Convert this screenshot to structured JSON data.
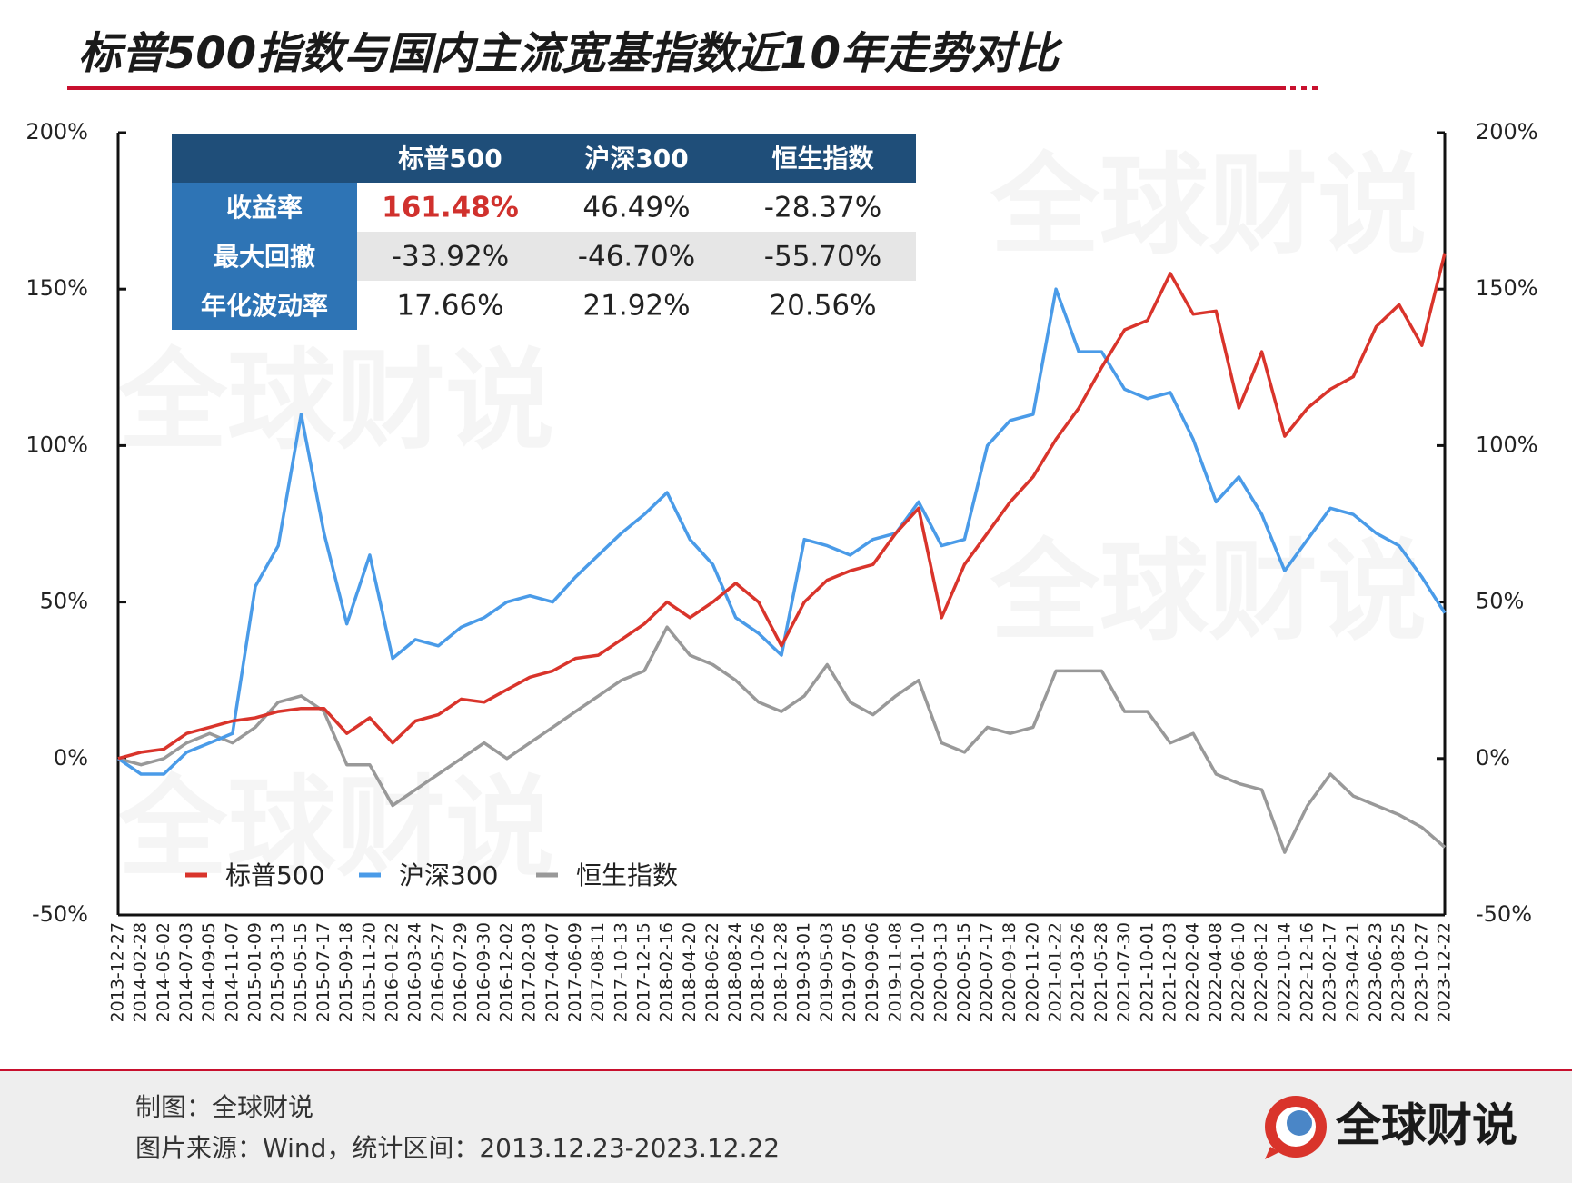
{
  "chart_data": {
    "type": "line",
    "title": "标普500指数与国内主流宽基指数近10年走势对比",
    "categories": [
      "2013-12-27",
      "2014-02-28",
      "2014-05-02",
      "2014-07-03",
      "2014-09-05",
      "2014-11-07",
      "2015-01-09",
      "2015-03-13",
      "2015-05-15",
      "2015-07-17",
      "2015-09-18",
      "2015-11-20",
      "2016-01-22",
      "2016-03-24",
      "2016-05-27",
      "2016-07-29",
      "2016-09-30",
      "2016-12-02",
      "2017-02-03",
      "2017-04-07",
      "2017-06-09",
      "2017-08-11",
      "2017-10-13",
      "2017-12-15",
      "2018-02-16",
      "2018-04-20",
      "2018-06-22",
      "2018-08-24",
      "2018-10-26",
      "2018-12-28",
      "2019-03-01",
      "2019-05-03",
      "2019-07-05",
      "2019-09-06",
      "2019-11-08",
      "2020-01-10",
      "2020-03-13",
      "2020-05-15",
      "2020-07-17",
      "2020-09-18",
      "2020-11-20",
      "2021-01-22",
      "2021-03-26",
      "2021-05-28",
      "2021-07-30",
      "2021-10-01",
      "2021-12-03",
      "2022-02-04",
      "2022-04-08",
      "2022-06-10",
      "2022-08-12",
      "2022-10-14",
      "2022-12-16",
      "2023-02-17",
      "2023-04-21",
      "2023-06-23",
      "2023-08-25",
      "2023-10-27",
      "2023-12-22"
    ],
    "series": [
      {
        "name": "标普500",
        "color": "#d9342b",
        "values": [
          0,
          2,
          3,
          8,
          10,
          12,
          13,
          15,
          16,
          16,
          8,
          13,
          5,
          12,
          14,
          19,
          18,
          22,
          26,
          28,
          32,
          33,
          38,
          43,
          50,
          45,
          50,
          56,
          50,
          36,
          50,
          57,
          60,
          62,
          72,
          80,
          45,
          62,
          72,
          82,
          90,
          102,
          112,
          125,
          137,
          140,
          155,
          142,
          143,
          112,
          130,
          103,
          112,
          118,
          122,
          138,
          145,
          132,
          161.48
        ]
      },
      {
        "name": "沪深300",
        "color": "#4a9be8",
        "values": [
          0,
          -5,
          -5,
          2,
          5,
          8,
          55,
          68,
          110,
          72,
          43,
          65,
          32,
          38,
          36,
          42,
          45,
          50,
          52,
          50,
          58,
          65,
          72,
          78,
          85,
          70,
          62,
          45,
          40,
          33,
          70,
          68,
          65,
          70,
          72,
          82,
          68,
          70,
          100,
          108,
          110,
          150,
          130,
          130,
          118,
          115,
          117,
          102,
          82,
          90,
          78,
          60,
          70,
          80,
          78,
          72,
          68,
          58,
          46.49
        ]
      },
      {
        "name": "恒生指数",
        "color": "#999999",
        "values": [
          0,
          -2,
          0,
          5,
          8,
          5,
          10,
          18,
          20,
          15,
          -2,
          -2,
          -15,
          -10,
          -5,
          0,
          5,
          0,
          5,
          10,
          15,
          20,
          25,
          28,
          42,
          33,
          30,
          25,
          18,
          15,
          20,
          30,
          18,
          14,
          20,
          25,
          5,
          2,
          10,
          8,
          10,
          28,
          28,
          28,
          15,
          15,
          5,
          8,
          -5,
          -8,
          -10,
          -30,
          -15,
          -5,
          -12,
          -15,
          -18,
          -22,
          -28.37
        ]
      }
    ],
    "ylim": [
      -50,
      200
    ],
    "yticks": [
      {
        "value": -50,
        "label": "-50%"
      },
      {
        "value": 0,
        "label": "0%"
      },
      {
        "value": 50,
        "label": "50%"
      },
      {
        "value": 100,
        "label": "100%"
      },
      {
        "value": 150,
        "label": "150%"
      },
      {
        "value": 200,
        "label": "200%"
      }
    ],
    "y2lim": [
      -50,
      200
    ],
    "y2ticks": [
      {
        "value": -50,
        "label": "-50%"
      },
      {
        "value": 0,
        "label": "0%"
      },
      {
        "value": 50,
        "label": "50%"
      },
      {
        "value": 100,
        "label": "100%"
      },
      {
        "value": 150,
        "label": "150%"
      },
      {
        "value": 200,
        "label": "200%"
      }
    ],
    "grid": false,
    "legend": "bottom-left"
  },
  "table": {
    "columns": [
      "标普500",
      "沪深300",
      "恒生指数"
    ],
    "rows": [
      [
        "收益率",
        "161.48%",
        "46.49%",
        "-28.37%"
      ],
      [
        "最大回撤",
        "-33.92%",
        "-46.70%",
        "-55.70%"
      ],
      [
        "年化波动率",
        "17.66%",
        "21.92%",
        "20.56%"
      ]
    ]
  },
  "brand": "全球财说",
  "footer": [
    "制图：全球财说",
    "图片来源：Wind，统计区间：2013.12.23-2023.12.22"
  ]
}
